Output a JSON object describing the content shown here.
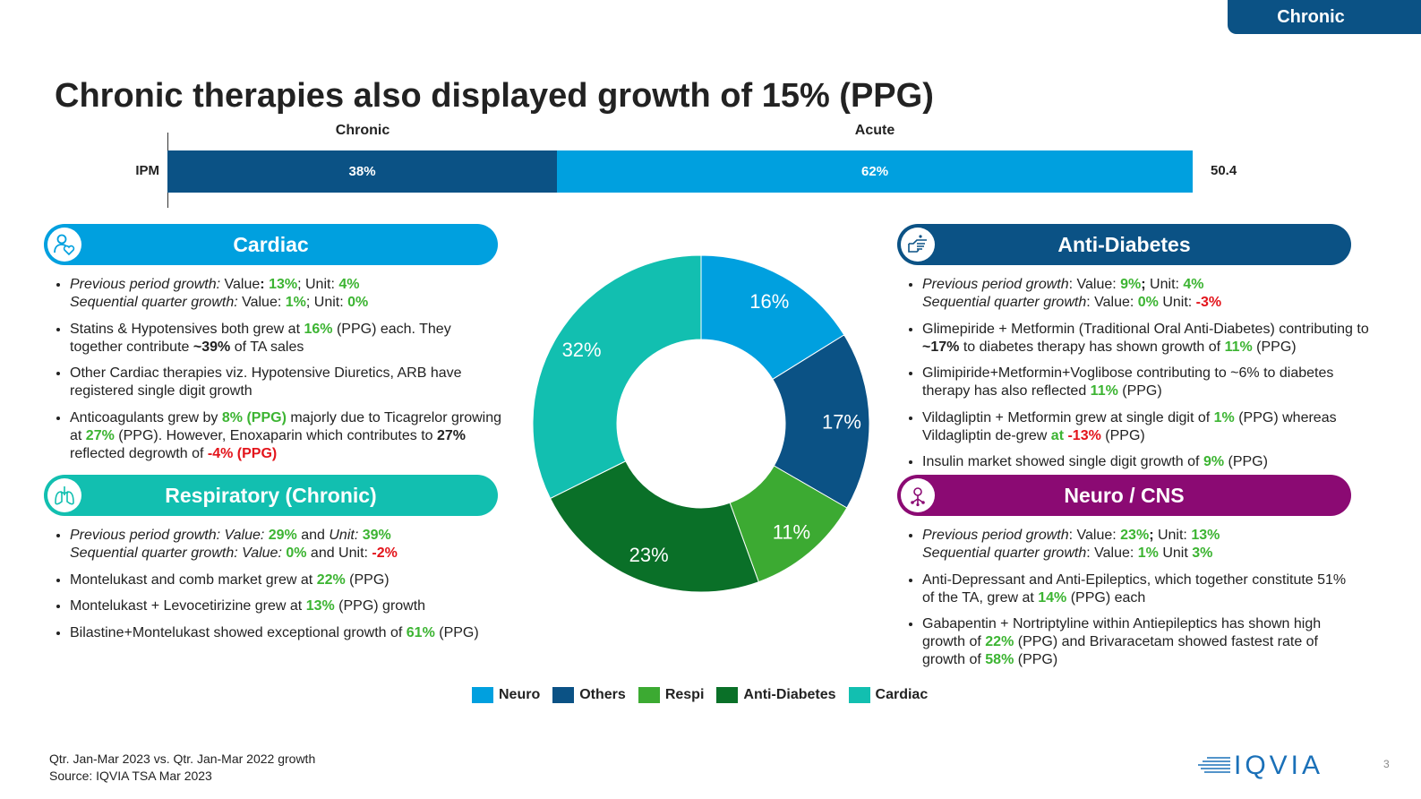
{
  "tag": "Chronic",
  "title": "Chronic therapies also displayed growth of 15% (PPG)",
  "ipm_bar": {
    "row_label": "IPM",
    "segments": [
      {
        "name": "Chronic",
        "label": "38%",
        "value": 38,
        "color": "#0b5285"
      },
      {
        "name": "Acute",
        "label": "62%",
        "value": 62,
        "color": "#00a0df"
      }
    ],
    "total": "50.4"
  },
  "chart_data": {
    "type": "pie",
    "style": "donut",
    "slices": [
      {
        "name": "Neuro",
        "value": 16,
        "label": "16%",
        "color": "#00a0df"
      },
      {
        "name": "Others",
        "value": 17,
        "label": "17%",
        "color": "#0b5285"
      },
      {
        "name": "Respi",
        "value": 11,
        "label": "11%",
        "color": "#3caa32"
      },
      {
        "name": "Anti-Diabetes",
        "value": 23,
        "label": "23%",
        "color": "#0a7028"
      },
      {
        "name": "Cardiac",
        "value": 32,
        "label": "32%",
        "color": "#12bfb0"
      }
    ],
    "legend": [
      "Neuro",
      "Others",
      "Respi",
      "Anti-Diabetes",
      "Cardiac"
    ],
    "legend_placement": "bottom"
  },
  "sections": {
    "cardiac": {
      "title": "Cardiac",
      "icon": "heart-person-icon",
      "color": "#00a0df",
      "bullets": [
        [
          {
            "t": "Previous period growth:",
            "s": "i"
          },
          {
            "t": " Value"
          },
          {
            "t": ":",
            "s": "b"
          },
          {
            "t": " "
          },
          {
            "t": "13%",
            "s": "g"
          },
          {
            "t": "; Unit: "
          },
          {
            "t": "4%",
            "s": "g"
          },
          {
            "br": true
          },
          {
            "t": "Sequential quarter growth:",
            "s": "i"
          },
          {
            "t": " Value: "
          },
          {
            "t": "1%",
            "s": "g"
          },
          {
            "t": "; Unit: "
          },
          {
            "t": "0%",
            "s": "g"
          }
        ],
        [
          {
            "t": "Statins & Hypotensives both grew at "
          },
          {
            "t": "16%",
            "s": "g"
          },
          {
            "t": " (PPG) each. They together contribute "
          },
          {
            "t": "~39%",
            "s": "b"
          },
          {
            "t": " of TA sales"
          }
        ],
        [
          {
            "t": "Other Cardiac therapies viz. Hypotensive Diuretics, ARB have registered single digit growth"
          }
        ],
        [
          {
            "t": "Anticoagulants grew by "
          },
          {
            "t": "8% (PPG)",
            "s": "g"
          },
          {
            "t": " majorly due to Ticagrelor growing at "
          },
          {
            "t": "27%",
            "s": "g"
          },
          {
            "t": " (PPG). However, Enoxaparin which contributes to "
          },
          {
            "t": "27%",
            "s": "b"
          },
          {
            "t": " reflected degrowth of "
          },
          {
            "t": "-4% (PPG)",
            "s": "r"
          }
        ]
      ]
    },
    "respiratory": {
      "title": "Respiratory (Chronic)",
      "icon": "lungs-icon",
      "color": "#12bfb0",
      "bullets": [
        [
          {
            "t": "Previous period growth: Value: ",
            "s": "i"
          },
          {
            "t": "29%",
            "s": "g"
          },
          {
            "t": " and "
          },
          {
            "t": "Unit:  ",
            "s": "i"
          },
          {
            "t": "39%",
            "s": "g"
          },
          {
            "br": true
          },
          {
            "t": "Sequential quarter growth: Value: ",
            "s": "i"
          },
          {
            "t": "0%",
            "s": "g"
          },
          {
            "t": " and Unit: "
          },
          {
            "t": "-2%",
            "s": "r"
          }
        ],
        [
          {
            "t": "Montelukast and comb market grew at "
          },
          {
            "t": "22%",
            "s": "g"
          },
          {
            "t": " (PPG)"
          }
        ],
        [
          {
            "t": "Montelukast + Levocetirizine grew at "
          },
          {
            "t": "13%",
            "s": "g"
          },
          {
            "t": " (PPG) growth"
          }
        ],
        [
          {
            "t": "Bilastine+Montelukast showed exceptional growth of "
          },
          {
            "t": "61%",
            "s": "g"
          },
          {
            "t": " (PPG)"
          }
        ]
      ]
    },
    "antidiabetes": {
      "title": "Anti-Diabetes",
      "icon": "hand-pointing-icon",
      "color": "#0b5285",
      "bullets": [
        [
          {
            "t": "Previous period growth",
            "s": "i"
          },
          {
            "t": ": Value: "
          },
          {
            "t": "9%",
            "s": "g"
          },
          {
            "t": ";",
            "s": "b"
          },
          {
            "t": " Unit: "
          },
          {
            "t": "4%",
            "s": "g"
          },
          {
            "br": true
          },
          {
            "t": "Sequential quarter growth",
            "s": "i"
          },
          {
            "t": ": Value: "
          },
          {
            "t": "0%",
            "s": "g"
          },
          {
            "t": " Unit: "
          },
          {
            "t": "-3%",
            "s": "r"
          }
        ],
        [
          {
            "t": "Glimepiride + Metformin (Traditional Oral Anti-Diabetes) contributing to "
          },
          {
            "t": "~17%",
            "s": "b"
          },
          {
            "t": " to diabetes therapy has shown growth of "
          },
          {
            "t": "11%",
            "s": "g"
          },
          {
            "t": " (PPG)"
          }
        ],
        [
          {
            "t": "Glimipiride+Metformin+Voglibose contributing to ~6% to diabetes therapy has also reflected "
          },
          {
            "t": "11%",
            "s": "g"
          },
          {
            "t": " (PPG)"
          }
        ],
        [
          {
            "t": "Vildagliptin + Metformin grew at single digit of "
          },
          {
            "t": "1%",
            "s": "g"
          },
          {
            "t": " (PPG) whereas Vildagliptin de-grew "
          },
          {
            "t": "at ",
            "s": "g"
          },
          {
            "t": "-13%",
            "s": "r"
          },
          {
            "t": " (PPG)"
          }
        ],
        [
          {
            "t": "Insulin market showed single digit growth of "
          },
          {
            "t": "9%",
            "s": "g"
          },
          {
            "t": " (PPG)"
          }
        ]
      ]
    },
    "neuro": {
      "title": "Neuro / CNS",
      "icon": "brain-network-icon",
      "color": "#8b0a73",
      "bullets": [
        [
          {
            "t": "Previous period growth",
            "s": "i"
          },
          {
            "t": ": Value: "
          },
          {
            "t": "23%",
            "s": "g"
          },
          {
            "t": ";",
            "s": "b"
          },
          {
            "t": " Unit:  "
          },
          {
            "t": "13%",
            "s": "g"
          },
          {
            "br": true
          },
          {
            "t": "Sequential quarter growth",
            "s": "i"
          },
          {
            "t": ": Value:  "
          },
          {
            "t": "1%",
            "s": "g"
          },
          {
            "t": " Unit "
          },
          {
            "t": "3%",
            "s": "g"
          }
        ],
        [
          {
            "t": "Anti-Depressant and Anti-Epileptics, which together constitute 51% of the TA, grew at "
          },
          {
            "t": "14%",
            "s": "g"
          },
          {
            "t": " (PPG) each"
          }
        ],
        [
          {
            "t": "Gabapentin + Nortriptyline within Antiepileptics has shown high growth of "
          },
          {
            "t": "22%",
            "s": "g"
          },
          {
            "t": " (PPG) and Brivaracetam showed fastest rate of growth of "
          },
          {
            "t": "58%",
            "s": "g"
          },
          {
            "t": " (PPG)"
          }
        ]
      ]
    }
  },
  "footer": {
    "line1": "Qtr. Jan-Mar 2023 vs. Qtr. Jan-Mar 2022 growth",
    "line2": "Source: IQVIA TSA Mar 2023",
    "logo": "IQVIA",
    "page": "3"
  }
}
